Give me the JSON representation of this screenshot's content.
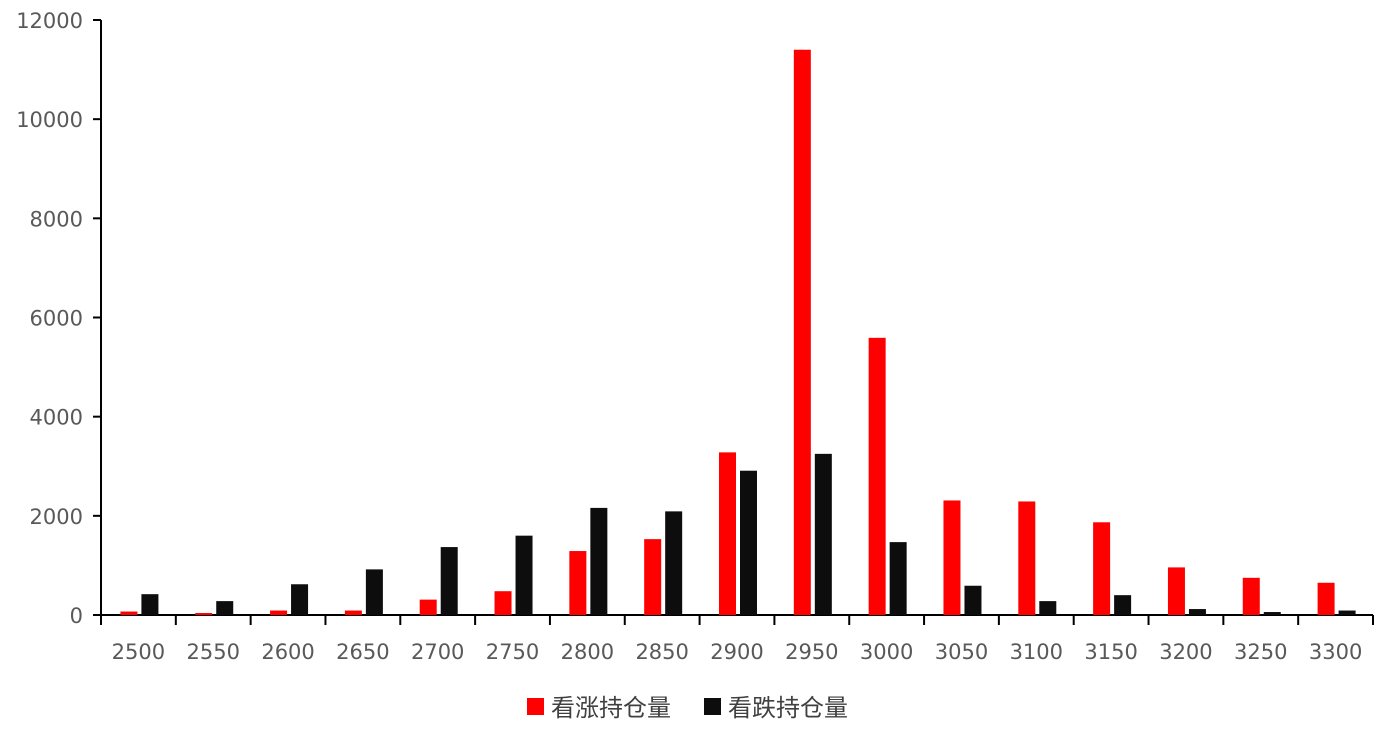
{
  "chart_data": {
    "type": "bar",
    "categories": [
      "2500",
      "2550",
      "2600",
      "2650",
      "2700",
      "2750",
      "2800",
      "2850",
      "2900",
      "2950",
      "3000",
      "3050",
      "3100",
      "3150",
      "3200",
      "3250",
      "3300"
    ],
    "series": [
      {
        "name": "看涨持仓量",
        "color": "#ff0000",
        "values": [
          70,
          40,
          90,
          90,
          310,
          480,
          1290,
          1530,
          3280,
          11400,
          5590,
          2310,
          2290,
          1870,
          960,
          750,
          650
        ]
      },
      {
        "name": "看跌持仓量",
        "color": "#0d0d0d",
        "values": [
          420,
          280,
          620,
          920,
          1370,
          1600,
          2160,
          2090,
          2910,
          3250,
          1470,
          590,
          280,
          400,
          120,
          60,
          90
        ]
      }
    ],
    "ylim": [
      0,
      12000
    ],
    "yticks": [
      "0",
      "2000",
      "4000",
      "6000",
      "8000",
      "10000",
      "12000"
    ],
    "grid": false,
    "legend_position": "bottom-center",
    "title": "",
    "xlabel": "",
    "ylabel": ""
  }
}
